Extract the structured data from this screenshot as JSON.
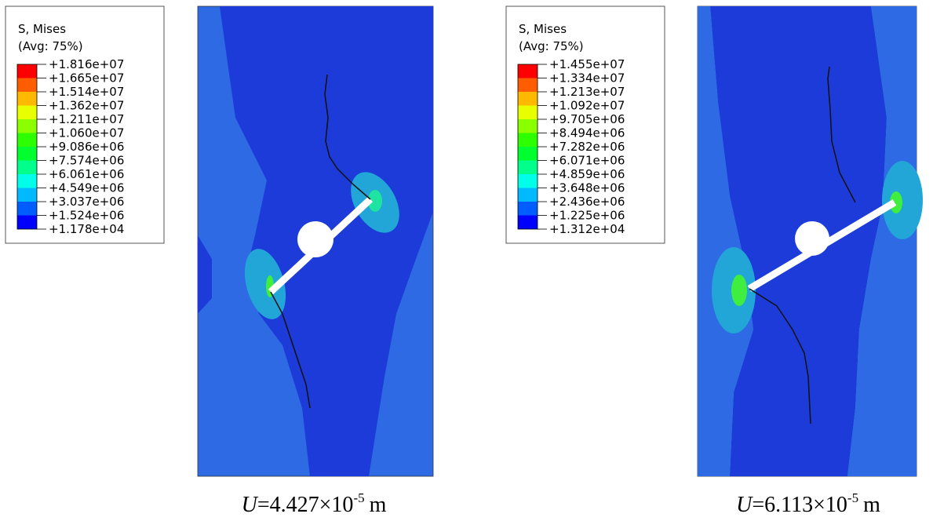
{
  "panels": [
    {
      "legend": {
        "title": "S, Mises",
        "subtitle": "(Avg: 75%)",
        "labels": [
          "+1.816e+07",
          "+1.665e+07",
          "+1.514e+07",
          "+1.362e+07",
          "+1.211e+07",
          "+1.060e+07",
          "+9.086e+06",
          "+7.574e+06",
          "+6.061e+06",
          "+4.549e+06",
          "+3.037e+06",
          "+1.524e+06",
          "+1.178e+04"
        ],
        "colors": [
          "#ff0000",
          "#ff5d00",
          "#ffb900",
          "#e8ff00",
          "#8bff00",
          "#2eff00",
          "#00ff2e",
          "#00ff8b",
          "#00ffe8",
          "#00b9ff",
          "#005dff",
          "#0000ff"
        ]
      },
      "caption": {
        "variable": "U",
        "value": "=4.427×10",
        "exponent": "-5",
        "unit": "m"
      }
    },
    {
      "legend": {
        "title": "S, Mises",
        "subtitle": "(Avg: 75%)",
        "labels": [
          "+1.455e+07",
          "+1.334e+07",
          "+1.213e+07",
          "+1.092e+07",
          "+9.705e+06",
          "+8.494e+06",
          "+7.282e+06",
          "+6.071e+06",
          "+4.859e+06",
          "+3.648e+06",
          "+2.436e+06",
          "+1.225e+06",
          "+1.312e+04"
        ],
        "colors": [
          "#ff0000",
          "#ff5d00",
          "#ffb900",
          "#e8ff00",
          "#8bff00",
          "#2eff00",
          "#00ff2e",
          "#00ff8b",
          "#00ffe8",
          "#00b9ff",
          "#005dff",
          "#0000ff"
        ]
      },
      "caption": {
        "variable": "U",
        "value": "=6.113×10",
        "exponent": "-5",
        "unit": "m"
      }
    }
  ]
}
